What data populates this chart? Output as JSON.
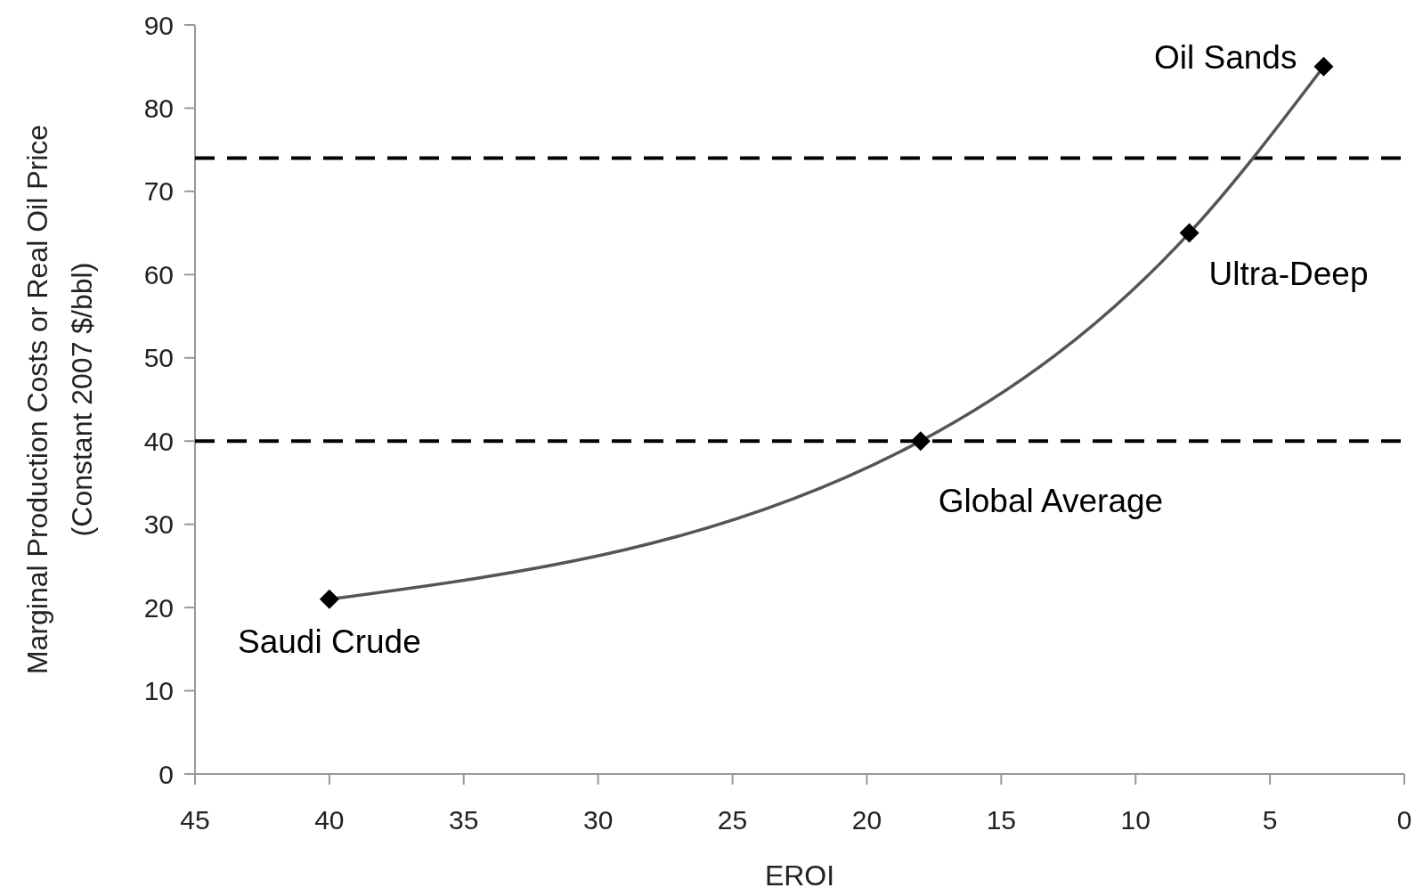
{
  "chart_data": {
    "type": "line",
    "xlabel": "EROI",
    "ylabel": "Marginal Production Costs or Real Oil Price\n(Constant 2007 $/bbl)",
    "x": [
      40,
      18,
      8,
      3
    ],
    "series": [
      {
        "color": "#555555",
        "values": [
          21,
          40,
          65,
          85
        ]
      }
    ],
    "marker": "diamond",
    "grid": false,
    "xlim": [
      45,
      0
    ],
    "xticks": [
      45,
      40,
      35,
      30,
      25,
      20,
      15,
      10,
      5,
      0
    ],
    "ylim": [
      0,
      90
    ],
    "yticks": [
      0,
      10,
      20,
      30,
      40,
      50,
      60,
      70,
      80,
      90
    ],
    "ref_lines": [
      {
        "axis": "y",
        "value": 74,
        "color": "#000000",
        "line_style": "dashed"
      },
      {
        "axis": "y",
        "value": 40,
        "color": "#000000",
        "line_style": "dashed"
      }
    ],
    "annotations": [
      {
        "text": "Saudi Crude",
        "x": 40,
        "y": 21
      },
      {
        "text": "Global Average",
        "x": 18,
        "y": 40
      },
      {
        "text": "Ultra-Deep",
        "x": 8,
        "y": 65
      },
      {
        "text": "Oil Sands",
        "x": 3,
        "y": 85
      }
    ]
  }
}
